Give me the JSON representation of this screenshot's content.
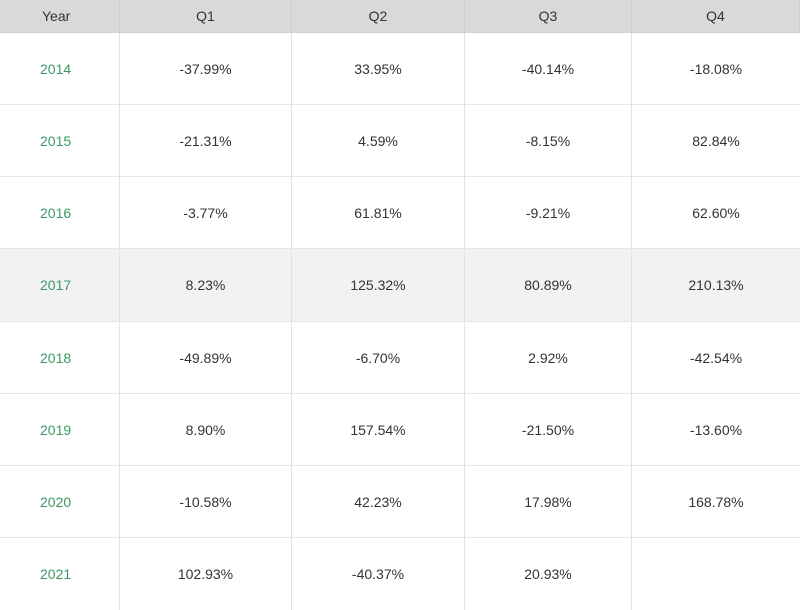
{
  "table": {
    "headers": [
      "Year",
      "Q1",
      "Q2",
      "Q3",
      "Q4"
    ],
    "rows": [
      {
        "year": "2014",
        "q1": "-37.99%",
        "q2": "33.95%",
        "q3": "-40.14%",
        "q4": "-18.08%"
      },
      {
        "year": "2015",
        "q1": "-21.31%",
        "q2": "4.59%",
        "q3": "-8.15%",
        "q4": "82.84%"
      },
      {
        "year": "2016",
        "q1": "-3.77%",
        "q2": "61.81%",
        "q3": "-9.21%",
        "q4": "62.60%"
      },
      {
        "year": "2017",
        "q1": "8.23%",
        "q2": "125.32%",
        "q3": "80.89%",
        "q4": "210.13%"
      },
      {
        "year": "2018",
        "q1": "-49.89%",
        "q2": "-6.70%",
        "q3": "2.92%",
        "q4": "-42.54%"
      },
      {
        "year": "2019",
        "q1": "8.90%",
        "q2": "157.54%",
        "q3": "-21.50%",
        "q4": "-13.60%"
      },
      {
        "year": "2020",
        "q1": "-10.58%",
        "q2": "42.23%",
        "q3": "17.98%",
        "q4": "168.78%"
      },
      {
        "year": "2021",
        "q1": "102.93%",
        "q2": "-40.37%",
        "q3": "20.93%",
        "q4": ""
      }
    ]
  },
  "colors": {
    "header_bg": "#d9d9d9",
    "year_text": "#3a9a66",
    "highlight_row_bg": "#f2f2f2",
    "cell_text": "#333333"
  }
}
